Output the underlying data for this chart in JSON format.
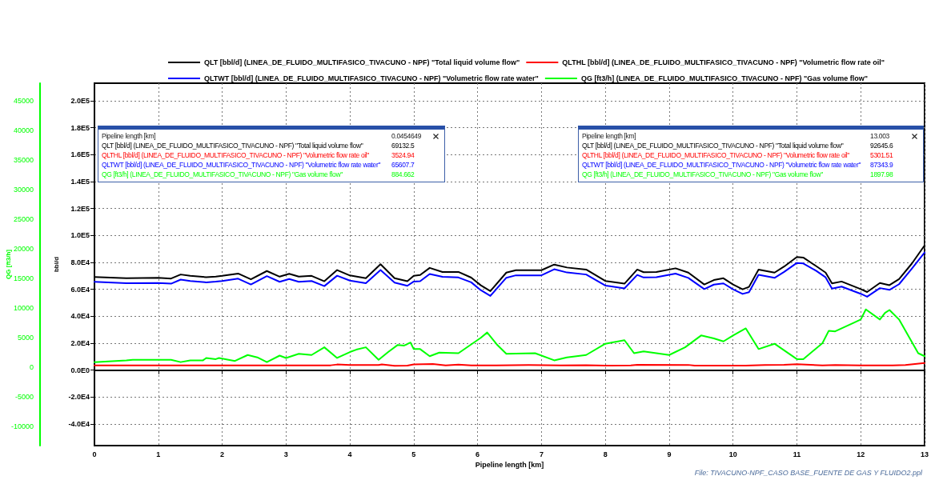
{
  "chart_data": {
    "type": "line",
    "xlabel": "Pipeline length [km]",
    "ylabel": "bbl/d",
    "y2label": "QG [ft3/h]",
    "xlim": [
      0,
      13
    ],
    "xticks": [
      0,
      1,
      2,
      3,
      4,
      5,
      6,
      7,
      8,
      9,
      10,
      11,
      12,
      13
    ],
    "ylim": [
      -56000,
      213000
    ],
    "yticks": [
      {
        "value": -40000,
        "label": "-4.0E4"
      },
      {
        "value": -20000,
        "label": "-2.0E4"
      },
      {
        "value": 0,
        "label": "0.0E0"
      },
      {
        "value": 20000,
        "label": "2.0E4"
      },
      {
        "value": 40000,
        "label": "4.0E4"
      },
      {
        "value": 60000,
        "label": "6.0E4"
      },
      {
        "value": 80000,
        "label": "8.0E4"
      },
      {
        "value": 100000,
        "label": "1.0E5"
      },
      {
        "value": 120000,
        "label": "1.2E5"
      },
      {
        "value": 140000,
        "label": "1.4E5"
      },
      {
        "value": 160000,
        "label": "1.6E5"
      },
      {
        "value": 180000,
        "label": "1.8E5"
      },
      {
        "value": 200000,
        "label": "2.0E5"
      }
    ],
    "y2lim": [
      -13200,
      48000
    ],
    "y2ticks": [
      -10000,
      -5000,
      0,
      5000,
      10000,
      15000,
      20000,
      25000,
      30000,
      35000,
      40000,
      45000
    ],
    "grid": true,
    "legend": "top",
    "marker": "none",
    "line_style": "solid",
    "series": [
      {
        "name": "QLT [bbl/d] (LINEA_DE_FLUIDO_MULTIFASICO_TIVACUNO - NPF) \"Total liquid volume flow\"",
        "color": "#000000",
        "x": [
          0,
          0.5,
          1,
          1.2,
          1.35,
          1.5,
          1.75,
          1.9,
          2,
          2.25,
          2.45,
          2.7,
          2.9,
          3.05,
          3.2,
          3.4,
          3.6,
          3.8,
          4,
          4.25,
          4.48,
          4.7,
          4.9,
          5,
          5.1,
          5.25,
          5.45,
          5.7,
          5.9,
          6.05,
          6.2,
          6.45,
          6.6,
          7,
          7.2,
          7.4,
          7.7,
          8,
          8.3,
          8.5,
          8.6,
          8.8,
          9.1,
          9.3,
          9.55,
          9.7,
          9.85,
          10,
          10.15,
          10.25,
          10.4,
          10.65,
          10.8,
          11,
          11.1,
          11.3,
          11.45,
          11.55,
          11.7,
          12,
          12.1,
          12.3,
          12.45,
          12.6,
          12.8,
          13
        ],
        "values": [
          69100,
          68300,
          68500,
          68000,
          71000,
          70000,
          69000,
          69500,
          70000,
          71700,
          67400,
          73600,
          69400,
          71500,
          69400,
          70000,
          66000,
          74300,
          70300,
          68300,
          78600,
          68300,
          66000,
          70100,
          70600,
          75900,
          72900,
          72900,
          68700,
          63000,
          58700,
          72400,
          74200,
          74200,
          78400,
          76200,
          74700,
          66200,
          64200,
          74700,
          72700,
          72900,
          75600,
          72400,
          63600,
          66900,
          68200,
          63600,
          60000,
          61800,
          74700,
          72400,
          76900,
          84000,
          83600,
          77300,
          72400,
          64400,
          65800,
          60200,
          58000,
          64700,
          63100,
          67600,
          79100,
          92600
        ]
      },
      {
        "name": "QLTHL [bbl/d] (LINEA_DE_FLUIDO_MULTIFASICO_TIVACUNO - NPF) \"Volumetric flow rate oil\"",
        "color": "#ff0000",
        "x": [
          0,
          3.7,
          3.8,
          4,
          4.45,
          4.5,
          4.7,
          4.9,
          5,
          5.3,
          5.5,
          5.7,
          5.9,
          6.3,
          6.8,
          7.3,
          7.7,
          8,
          8.4,
          8.5,
          9.3,
          9.4,
          10.2,
          10.5,
          10.8,
          11,
          11.4,
          11.6,
          12,
          12.5,
          12.7,
          13
        ],
        "values": [
          3500,
          3600,
          4200,
          3800,
          3800,
          4300,
          3300,
          3400,
          4300,
          4500,
          3600,
          4100,
          3500,
          3600,
          3800,
          3500,
          3700,
          3400,
          3500,
          4000,
          3900,
          3400,
          3400,
          3900,
          4000,
          4400,
          3500,
          3800,
          3500,
          3500,
          3800,
          5300
        ]
      },
      {
        "name": "QLTWT [bbl/d] (LINEA_DE_FLUIDO_MULTIFASICO_TIVACUNO - NPF) \"Volumetric flow rate water\"",
        "color": "#0000ff",
        "x": [
          0,
          0.5,
          1,
          1.2,
          1.35,
          1.5,
          1.75,
          1.9,
          2,
          2.25,
          2.45,
          2.7,
          2.9,
          3.05,
          3.2,
          3.4,
          3.6,
          3.8,
          4,
          4.25,
          4.48,
          4.7,
          4.9,
          5,
          5.1,
          5.25,
          5.45,
          5.7,
          5.9,
          6.05,
          6.2,
          6.45,
          6.6,
          7,
          7.2,
          7.4,
          7.7,
          8,
          8.3,
          8.5,
          8.6,
          8.8,
          9.1,
          9.3,
          9.55,
          9.7,
          9.85,
          10,
          10.15,
          10.25,
          10.4,
          10.65,
          10.8,
          11,
          11.1,
          11.3,
          11.45,
          11.55,
          11.7,
          12,
          12.1,
          12.3,
          12.45,
          12.6,
          12.8,
          13
        ],
        "values": [
          65600,
          64500,
          64700,
          64200,
          67200,
          66200,
          65200,
          65700,
          66200,
          67900,
          63600,
          69800,
          65600,
          67700,
          65600,
          66200,
          62400,
          70100,
          66500,
          64500,
          74300,
          65000,
          62600,
          65800,
          66000,
          71400,
          69300,
          68800,
          65200,
          59400,
          55100,
          68600,
          70400,
          70400,
          74900,
          72500,
          71000,
          62800,
          60700,
          70700,
          68800,
          69000,
          71700,
          68500,
          60200,
          63500,
          64400,
          60000,
          56600,
          57900,
          70800,
          68500,
          72900,
          79600,
          79200,
          73800,
          68900,
          60600,
          62000,
          56700,
          54500,
          60900,
          59600,
          63800,
          75300,
          87300
        ]
      },
      {
        "name": "QG [ft3/h] (LINEA_DE_FLUIDO_MULTIFASICO_TIVACUNO - NPF) \"Gas volume flow\"",
        "color": "#00ff00",
        "axis": "y2",
        "x": [
          0,
          0.5,
          0.6,
          1.2,
          1.35,
          1.5,
          1.7,
          1.75,
          1.9,
          1.95,
          2.1,
          2.2,
          2.4,
          2.55,
          2.7,
          2.9,
          3,
          3.2,
          3.4,
          3.6,
          3.8,
          4,
          4.1,
          4.25,
          4.45,
          4.6,
          4.75,
          4.85,
          4.95,
          5,
          5.1,
          5.25,
          5.4,
          5.7,
          6.05,
          6.15,
          6.3,
          6.45,
          6.9,
          7.2,
          7.4,
          7.7,
          8,
          8.2,
          8.3,
          8.45,
          8.6,
          8.8,
          9,
          9.25,
          9.5,
          9.7,
          9.85,
          10,
          10.2,
          10.4,
          10.65,
          10.8,
          11,
          11.1,
          11.4,
          11.5,
          11.6,
          11.9,
          12,
          12.08,
          12.3,
          12.38,
          12.45,
          12.6,
          12.9,
          13
        ],
        "values": [
          900,
          1200,
          1300,
          1300,
          900,
          1200,
          1200,
          1600,
          1400,
          1600,
          1300,
          1100,
          2100,
          1700,
          900,
          2000,
          1600,
          2300,
          2100,
          3400,
          1600,
          2600,
          3000,
          3400,
          1300,
          2600,
          3800,
          3700,
          4200,
          3100,
          3100,
          1900,
          2500,
          2400,
          5000,
          5900,
          3900,
          2300,
          2400,
          1200,
          1700,
          2100,
          4000,
          4400,
          4600,
          2400,
          2700,
          2400,
          2100,
          3400,
          5400,
          4900,
          4400,
          5400,
          6600,
          3100,
          4000,
          2900,
          1400,
          1400,
          4100,
          6200,
          6100,
          7600,
          8100,
          9800,
          8100,
          9200,
          9700,
          8100,
          2400,
          1900
        ]
      }
    ],
    "annotations": [
      "Pipeline length [km]",
      "0.0454649",
      "QLT [bbl/d] (LINEA_DE_FLUIDO_MULTIFASICO_TIVACUNO - NPF) \"Total liquid volume flow\"",
      "69132.5",
      "QLTHL [bbl/d] (LINEA_DE_FLUIDO_MULTIFASICO_TIVACUNO - NPF) \"Volumetric flow rate oil\"",
      "3524.94",
      "QLTWT [bbl/d] (LINEA_DE_FLUIDO_MULTIFASICO_TIVACUNO - NPF) \"Volumetric flow rate water\"",
      "65607.7",
      "QG [ft3/h] (LINEA_DE_FLUIDO_MULTIFASICO_TIVACUNO - NPF) \"Gas volume flow\"",
      "884.662",
      "Pipeline length [km]",
      "13.003",
      "QLT [bbl/d] (LINEA_DE_FLUIDO_MULTIFASICO_TIVACUNO - NPF) \"Total liquid volume flow\"",
      "92645.6",
      "QLTHL [bbl/d] (LINEA_DE_FLUIDO_MULTIFASICO_TIVACUNO - NPF) \"Volumetric flow rate oil\"",
      "5301.51",
      "QLTWT [bbl/d] (LINEA_DE_FLUIDO_MULTIFASICO_TIVACUNO - NPF) \"Volumetric flow rate water\"",
      "87343.9",
      "QG [ft3/h] (LINEA_DE_FLUIDO_MULTIFASICO_TIVACUNO - NPF) \"Gas volume flow\"",
      "1897.98",
      "File: TIVACUNO-NPF_CASO BASE_FUENTE DE GAS Y FLUIDO2.ppl"
    ]
  }
}
